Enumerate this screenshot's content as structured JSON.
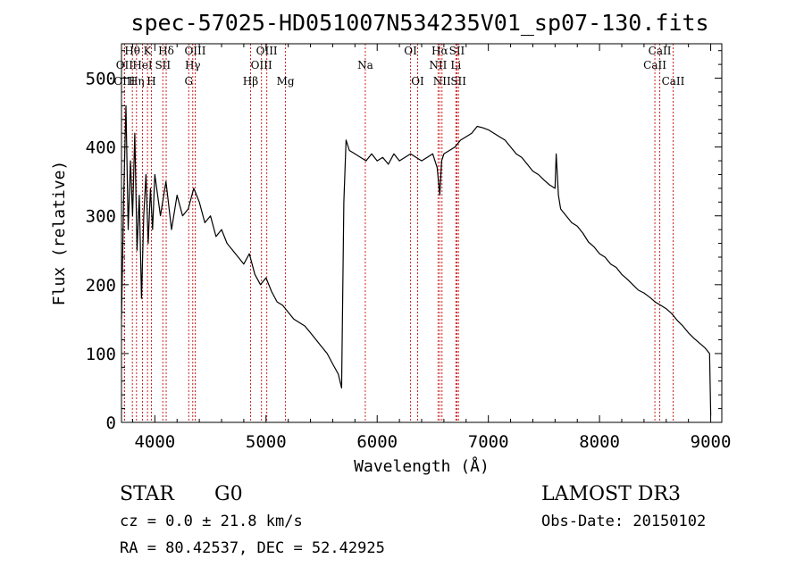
{
  "chart_data": {
    "type": "line",
    "title": "spec-57025-HD051007N534235V01_sp07-130.fits",
    "xlabel": "Wavelength (Å)",
    "ylabel": "Flux (relative)",
    "xlim": [
      3700,
      9100
    ],
    "ylim": [
      0,
      550
    ],
    "xticks": [
      4000,
      5000,
      6000,
      7000,
      8000,
      9000
    ],
    "yticks": [
      0,
      100,
      200,
      300,
      400,
      500
    ],
    "grid": false,
    "series": [
      {
        "x": [
          3700,
          3720,
          3740,
          3760,
          3780,
          3800,
          3820,
          3840,
          3860,
          3880,
          3900,
          3920,
          3940,
          3960,
          3980,
          4000,
          4050,
          4100,
          4150,
          4200,
          4250,
          4300,
          4350,
          4400,
          4450,
          4500,
          4550,
          4600,
          4650,
          4700,
          4750,
          4800,
          4850,
          4900,
          4950,
          5000,
          5050,
          5100,
          5150,
          5200,
          5250,
          5300,
          5350,
          5400,
          5450,
          5500,
          5550,
          5600,
          5650,
          5680,
          5700,
          5720,
          5750,
          5800,
          5850,
          5900,
          5950,
          6000,
          6050,
          6100,
          6150,
          6200,
          6250,
          6300,
          6350,
          6400,
          6450,
          6500,
          6540,
          6563,
          6580,
          6600,
          6650,
          6700,
          6750,
          6800,
          6850,
          6900,
          6950,
          7000,
          7050,
          7100,
          7150,
          7200,
          7250,
          7300,
          7350,
          7400,
          7450,
          7500,
          7550,
          7600,
          7610,
          7630,
          7650,
          7700,
          7750,
          7800,
          7850,
          7900,
          7950,
          8000,
          8050,
          8100,
          8150,
          8200,
          8250,
          8300,
          8350,
          8400,
          8450,
          8500,
          8550,
          8600,
          8650,
          8700,
          8750,
          8800,
          8850,
          8900,
          8950,
          8990,
          9000
        ],
        "y": [
          150,
          330,
          460,
          280,
          380,
          300,
          420,
          250,
          330,
          180,
          300,
          360,
          260,
          340,
          280,
          360,
          300,
          350,
          280,
          330,
          300,
          310,
          340,
          320,
          290,
          300,
          270,
          280,
          260,
          250,
          240,
          230,
          245,
          215,
          200,
          210,
          190,
          175,
          170,
          160,
          150,
          145,
          140,
          130,
          120,
          110,
          100,
          85,
          70,
          50,
          320,
          410,
          395,
          390,
          385,
          380,
          390,
          380,
          385,
          375,
          390,
          380,
          385,
          390,
          385,
          380,
          385,
          390,
          370,
          330,
          380,
          390,
          395,
          400,
          410,
          415,
          420,
          430,
          428,
          425,
          420,
          415,
          410,
          400,
          390,
          385,
          375,
          365,
          360,
          352,
          345,
          340,
          390,
          330,
          310,
          300,
          290,
          285,
          275,
          262,
          255,
          245,
          240,
          230,
          225,
          215,
          208,
          200,
          192,
          188,
          182,
          175,
          170,
          165,
          158,
          148,
          140,
          130,
          122,
          115,
          108,
          100,
          10
        ]
      }
    ],
    "spectral_lines": [
      {
        "label": "Hθ",
        "wavelength": 3798,
        "row": 1
      },
      {
        "label": "OII",
        "wavelength": 3727,
        "row": 2
      },
      {
        "label": "OIII",
        "wavelength": 3727,
        "row": 3
      },
      {
        "label": "Hη",
        "wavelength": 3835,
        "row": 3
      },
      {
        "label": "HeI",
        "wavelength": 3889,
        "row": 2
      },
      {
        "label": "K",
        "wavelength": 3934,
        "row": 1
      },
      {
        "label": "H",
        "wavelength": 3969,
        "row": 3
      },
      {
        "label": "SII",
        "wavelength": 4072,
        "row": 2
      },
      {
        "label": "Hδ",
        "wavelength": 4102,
        "row": 1
      },
      {
        "label": "OIII",
        "wavelength": 4363,
        "row": 1
      },
      {
        "label": "Hγ",
        "wavelength": 4341,
        "row": 2
      },
      {
        "label": "G",
        "wavelength": 4305,
        "row": 3
      },
      {
        "label": "Hβ",
        "wavelength": 4861,
        "row": 3
      },
      {
        "label": "OIII",
        "wavelength": 5007,
        "row": 1
      },
      {
        "label": "OIII",
        "wavelength": 4959,
        "row": 2
      },
      {
        "label": "Mg",
        "wavelength": 5175,
        "row": 3
      },
      {
        "label": "Na",
        "wavelength": 5893,
        "row": 2
      },
      {
        "label": "OI",
        "wavelength": 6300,
        "row": 1
      },
      {
        "label": "OI",
        "wavelength": 6364,
        "row": 3
      },
      {
        "label": "Hα",
        "wavelength": 6563,
        "row": 1
      },
      {
        "label": "NII",
        "wavelength": 6548,
        "row": 2
      },
      {
        "label": "NII",
        "wavelength": 6583,
        "row": 3
      },
      {
        "label": "SII",
        "wavelength": 6717,
        "row": 1
      },
      {
        "label": "Li",
        "wavelength": 6708,
        "row": 2
      },
      {
        "label": "SII",
        "wavelength": 6731,
        "row": 3
      },
      {
        "label": "CaII",
        "wavelength": 8542,
        "row": 1
      },
      {
        "label": "CaII",
        "wavelength": 8498,
        "row": 2
      },
      {
        "label": "CaII",
        "wavelength": 8662,
        "row": 3
      }
    ],
    "line_color": "#000000",
    "marker_color": "#cc2222"
  },
  "info": {
    "object_class": "STAR",
    "subclass": "G0",
    "redshift": "cz =  0.0 ± 21.8 km/s",
    "coords": "RA =  80.42537, DEC =  52.42925",
    "survey": "LAMOST DR3",
    "obs_date": "Obs-Date: 20150102"
  }
}
